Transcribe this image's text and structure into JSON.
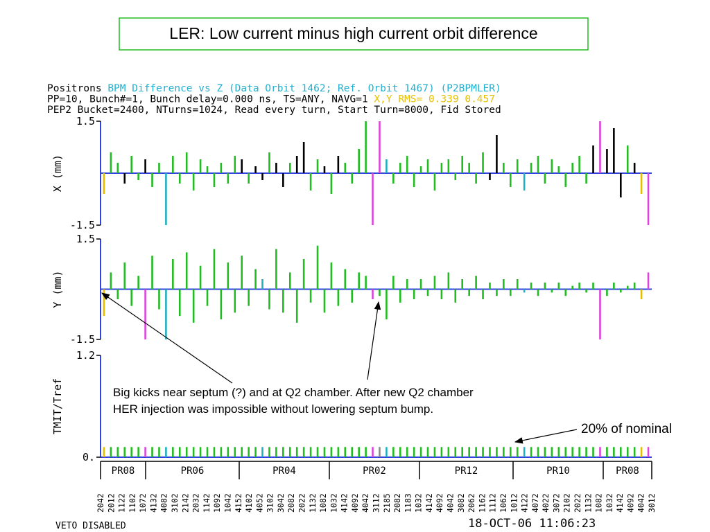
{
  "title": "LER: Low current minus high current orbit difference",
  "header": [
    [
      {
        "text": "Positrons ",
        "color": "#000000"
      },
      {
        "text": "BPM Difference vs Z (Data Orbit 1462; Ref. Orbit 1467) (P2BPMLER)",
        "color": "#20b0d0"
      }
    ],
    [
      {
        "text": "PP=10, Bunch#=1, Bunch delay=0.000 ns, TS=ANY, NAVG=1 ",
        "color": "#000000"
      },
      {
        "text": "X,Y RMS= 0.339 0.457",
        "color": "#e8c000"
      }
    ],
    [
      {
        "text": "PEP2 Bucket=2400, NTurns=1024, Read every turn, Start Turn=8000, Fid Stored",
        "color": "#000000"
      }
    ]
  ],
  "chart_data": [
    {
      "type": "bar",
      "axis_label": "X (mm)",
      "ylim": [
        -1.5,
        1.5
      ],
      "yticks": [
        1.5,
        -1.5
      ],
      "values": [
        -0.6,
        0.6,
        0.3,
        -0.3,
        0.5,
        -0.2,
        0.4,
        -0.4,
        0.3,
        -1.5,
        0.5,
        -0.3,
        0.6,
        -0.5,
        0.4,
        0.2,
        -0.4,
        0.3,
        -0.3,
        0.5,
        0.4,
        -0.3,
        0.2,
        -0.2,
        0.6,
        0.3,
        -0.4,
        0.3,
        0.5,
        0.9,
        -0.5,
        0.4,
        0.2,
        -0.6,
        0.5,
        0.3,
        -0.3,
        0.7,
        1.5,
        -1.5,
        1.5,
        0.4,
        -0.3,
        0.3,
        0.5,
        -0.4,
        0.2,
        0.4,
        -0.5,
        0.3,
        0.4,
        -0.2,
        0.5,
        0.3,
        -0.3,
        0.6,
        -0.2,
        1.1,
        0.3,
        -0.4,
        0.4,
        -0.5,
        0.3,
        0.5,
        -0.3,
        0.4,
        0.2,
        -0.4,
        0.3,
        0.5,
        -0.3,
        0.8,
        1.5,
        0.7,
        1.3,
        -0.7,
        0.8,
        0.3,
        -0.6,
        -1.5
      ],
      "colors": [
        "#e0c000",
        "#22bb22",
        "#22bb22",
        "#000000",
        "#22bb22",
        "#22bb22",
        "#000000",
        "#22bb22",
        "#22bb22",
        "#20b0c0",
        "#22bb22",
        "#22bb22",
        "#22bb22",
        "#22bb22",
        "#22bb22",
        "#22bb22",
        "#22bb22",
        "#22bb22",
        "#22bb22",
        "#22bb22",
        "#000000",
        "#22bb22",
        "#000000",
        "#000000",
        "#22bb22",
        "#000000",
        "#000000",
        "#22bb22",
        "#000000",
        "#000000",
        "#22bb22",
        "#22bb22",
        "#000000",
        "#22bb22",
        "#000000",
        "#22bb22",
        "#22bb22",
        "#22bb22",
        "#22bb22",
        "#dd44dd",
        "#dd44dd",
        "#20b0c0",
        "#22bb22",
        "#22bb22",
        "#22bb22",
        "#22bb22",
        "#22bb22",
        "#22bb22",
        "#22bb22",
        "#22bb22",
        "#22bb22",
        "#22bb22",
        "#22bb22",
        "#22bb22",
        "#22bb22",
        "#22bb22",
        "#000000",
        "#000000",
        "#22bb22",
        "#22bb22",
        "#22bb22",
        "#20b0c0",
        "#22bb22",
        "#22bb22",
        "#22bb22",
        "#22bb22",
        "#22bb22",
        "#22bb22",
        "#22bb22",
        "#22bb22",
        "#22bb22",
        "#000000",
        "#dd44dd",
        "#000000",
        "#000000",
        "#000000",
        "#22bb22",
        "#000000",
        "#e0c000",
        "#dd44dd"
      ]
    },
    {
      "type": "bar",
      "axis_label": "Y (mm)",
      "ylim": [
        -1.5,
        1.5
      ],
      "yticks": [
        1.5,
        -1.5
      ],
      "values": [
        -0.8,
        0.5,
        -0.3,
        0.8,
        -0.5,
        0.4,
        -1.5,
        1.0,
        -0.6,
        -1.5,
        0.9,
        -0.8,
        1.1,
        -1.0,
        0.7,
        -0.5,
        1.2,
        -0.9,
        0.8,
        -0.7,
        1.0,
        -0.5,
        0.6,
        0.3,
        -0.6,
        1.2,
        -0.7,
        0.5,
        -1.0,
        0.9,
        -0.4,
        1.3,
        -0.7,
        0.8,
        -0.5,
        0.6,
        -0.4,
        0.5,
        0.4,
        -0.3,
        -0.2,
        -0.9,
        0.4,
        -0.4,
        0.3,
        -0.3,
        0.3,
        -0.2,
        0.4,
        -0.3,
        0.5,
        -0.4,
        0.3,
        -0.2,
        0.4,
        -0.3,
        0.2,
        -0.2,
        0.3,
        -0.2,
        0.3,
        -0.1,
        0.2,
        -0.2,
        0.2,
        -0.1,
        0.2,
        -0.2,
        0.1,
        0.2,
        -0.1,
        0.2,
        -1.5,
        -0.2,
        0.2,
        -0.1,
        0.1,
        0.2,
        -0.3,
        0.5
      ],
      "colors": [
        "#e0c000",
        "#22bb22",
        "#22bb22",
        "#22bb22",
        "#22bb22",
        "#22bb22",
        "#dd44dd",
        "#22bb22",
        "#22bb22",
        "#20b0c0",
        "#22bb22",
        "#22bb22",
        "#22bb22",
        "#22bb22",
        "#22bb22",
        "#22bb22",
        "#22bb22",
        "#22bb22",
        "#22bb22",
        "#22bb22",
        "#22bb22",
        "#22bb22",
        "#22bb22",
        "#20b0c0",
        "#22bb22",
        "#22bb22",
        "#22bb22",
        "#22bb22",
        "#22bb22",
        "#22bb22",
        "#22bb22",
        "#22bb22",
        "#22bb22",
        "#22bb22",
        "#22bb22",
        "#22bb22",
        "#22bb22",
        "#22bb22",
        "#22bb22",
        "#dd44dd",
        "#22bb22",
        "#22bb22",
        "#22bb22",
        "#22bb22",
        "#22bb22",
        "#22bb22",
        "#22bb22",
        "#22bb22",
        "#22bb22",
        "#22bb22",
        "#22bb22",
        "#22bb22",
        "#22bb22",
        "#22bb22",
        "#22bb22",
        "#22bb22",
        "#22bb22",
        "#22bb22",
        "#22bb22",
        "#22bb22",
        "#22bb22",
        "#20b0c0",
        "#22bb22",
        "#22bb22",
        "#22bb22",
        "#22bb22",
        "#22bb22",
        "#22bb22",
        "#22bb22",
        "#22bb22",
        "#22bb22",
        "#22bb22",
        "#dd44dd",
        "#22bb22",
        "#22bb22",
        "#22bb22",
        "#22bb22",
        "#22bb22",
        "#e0c000",
        "#dd44dd"
      ]
    },
    {
      "type": "bar",
      "axis_label": "TMIT/Tref",
      "ylim": [
        0,
        1.2
      ],
      "yticks": [
        1.2,
        {
          "value": 0,
          "label": "0."
        }
      ],
      "values": [
        0.12,
        0.12,
        0.12,
        0.12,
        0.12,
        0.12,
        0.12,
        0.12,
        0.12,
        0.12,
        0.12,
        0.12,
        0.12,
        0.12,
        0.12,
        0.12,
        0.12,
        0.12,
        0.12,
        0.12,
        0.12,
        0.12,
        0.12,
        0.12,
        0.12,
        0.12,
        0.12,
        0.12,
        0.12,
        0.12,
        0.12,
        0.12,
        0.12,
        0.12,
        0.12,
        0.12,
        0.12,
        0.12,
        0.12,
        0.12,
        0.12,
        0.12,
        0.12,
        0.12,
        0.12,
        0.12,
        0.12,
        0.12,
        0.12,
        0.12,
        0.12,
        0.12,
        0.12,
        0.12,
        0.12,
        0.12,
        0.12,
        0.12,
        0.12,
        0.12,
        0.12,
        0.12,
        0.12,
        0.12,
        0.12,
        0.12,
        0.12,
        0.12,
        0.12,
        0.12,
        0.12,
        0.12,
        0.12,
        0.12,
        0.12,
        0.12,
        0.12,
        0.12,
        0.12,
        0.12
      ],
      "colors": [
        "#e0c000",
        "#22bb22",
        "#22bb22",
        "#22bb22",
        "#22bb22",
        "#22bb22",
        "#dd44dd",
        "#22bb22",
        "#22bb22",
        "#20b0c0",
        "#22bb22",
        "#22bb22",
        "#22bb22",
        "#22bb22",
        "#22bb22",
        "#22bb22",
        "#22bb22",
        "#22bb22",
        "#22bb22",
        "#22bb22",
        "#22bb22",
        "#22bb22",
        "#22bb22",
        "#20b0c0",
        "#22bb22",
        "#22bb22",
        "#22bb22",
        "#22bb22",
        "#22bb22",
        "#22bb22",
        "#22bb22",
        "#22bb22",
        "#22bb22",
        "#22bb22",
        "#22bb22",
        "#22bb22",
        "#22bb22",
        "#22bb22",
        "#22bb22",
        "#dd44dd",
        "#888888",
        "#20b0c0",
        "#22bb22",
        "#22bb22",
        "#22bb22",
        "#22bb22",
        "#22bb22",
        "#22bb22",
        "#22bb22",
        "#22bb22",
        "#22bb22",
        "#22bb22",
        "#22bb22",
        "#22bb22",
        "#22bb22",
        "#22bb22",
        "#22bb22",
        "#22bb22",
        "#22bb22",
        "#22bb22",
        "#22bb22",
        "#20b0c0",
        "#22bb22",
        "#22bb22",
        "#22bb22",
        "#22bb22",
        "#22bb22",
        "#22bb22",
        "#22bb22",
        "#22bb22",
        "#22bb22",
        "#22bb22",
        "#dd44dd",
        "#22bb22",
        "#22bb22",
        "#22bb22",
        "#22bb22",
        "#22bb22",
        "#e0c000",
        "#dd44dd"
      ]
    }
  ],
  "regions": [
    "PR08",
    "PR06",
    "PR04",
    "PR02",
    "PR12",
    "PR10",
    "PR08"
  ],
  "bpm_labels": [
    "2042",
    "2012",
    "1122",
    "1102",
    "1072",
    "4132",
    "4082",
    "3102",
    "2142",
    "2032",
    "1142",
    "1092",
    "1042",
    "4152",
    "4102",
    "4052",
    "3102",
    "3042",
    "2082",
    "2022",
    "1132",
    "1082",
    "1032",
    "4142",
    "4092",
    "4042",
    "3112",
    "2185",
    "2082",
    "1183",
    "1032",
    "4142",
    "4092",
    "4042",
    "3082",
    "2062",
    "1162",
    "1112",
    "1062",
    "1012",
    "4122",
    "4072",
    "4022",
    "3072",
    "2102",
    "2022",
    "1132",
    "1082",
    "1032",
    "4142",
    "4092",
    "4042",
    "3012"
  ],
  "annotations": {
    "kicks": [
      "Big kicks near septum (?) and at Q2 chamber. After new Q2 chamber",
      "HER injection was impossible without lowering septum bump."
    ],
    "nominal": "20% of nominal"
  },
  "footer": {
    "left": "VETO DISABLED",
    "right": "18-OCT-06 11:06:23"
  }
}
